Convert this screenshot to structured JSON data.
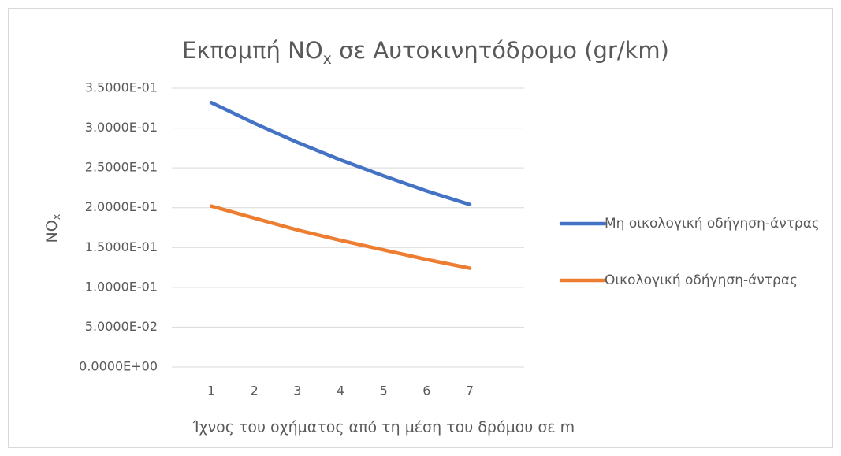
{
  "chart_data": {
    "type": "line",
    "title": [
      "Εκπομπή NO",
      "x",
      " σε Αυτοκινητόδρομο (gr/km)"
    ],
    "x_label": "Ίχνος του οχήματος από τη μέση του δρόμου σε m",
    "y_label": [
      "NO",
      "x"
    ],
    "categories": [
      1,
      2,
      3,
      4,
      5,
      6,
      7
    ],
    "series": [
      {
        "name": "Μη οικολογική οδήγηση-άντρας",
        "color": "#4472c4",
        "values": [
          0.332,
          0.306,
          0.282,
          0.26,
          0.24,
          0.221,
          0.204
        ]
      },
      {
        "name": "Οικολογική οδήγηση-άντρας",
        "color": "#ed7d31",
        "values": [
          0.202,
          0.187,
          0.172,
          0.159,
          0.147,
          0.135,
          0.124
        ]
      }
    ],
    "ylim": [
      0,
      0.35
    ],
    "yticks": [
      {
        "value": 0,
        "label": "0.0000E+00"
      },
      {
        "value": 0.05,
        "label": "5.0000E-02"
      },
      {
        "value": 0.1,
        "label": "1.0000E-01"
      },
      {
        "value": 0.15,
        "label": "1.5000E-01"
      },
      {
        "value": 0.2,
        "label": "2.0000E-01"
      },
      {
        "value": 0.25,
        "label": "2.5000E-01"
      },
      {
        "value": 0.3,
        "label": "3.0000E-01"
      },
      {
        "value": 0.35,
        "label": "3.5000E-01"
      }
    ],
    "grid": true,
    "legend": "right"
  }
}
